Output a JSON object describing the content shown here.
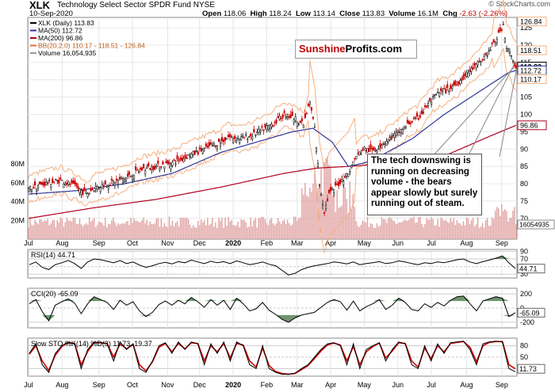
{
  "header": {
    "symbol": "XLK",
    "name": "Technology Select Sector SPDR Fund NYSE",
    "date": "10-Sep-2020",
    "open_label": "Open",
    "open": "118.06",
    "high_label": "High",
    "high": "118.24",
    "low_label": "Low",
    "low": "113.14",
    "close_label": "Close",
    "close": "113.83",
    "volume_label": "Volume",
    "volume": "16.1M",
    "chg_label": "Chg",
    "chg": "-2.63 (-2.26%)",
    "copyright": "© StockCharts.com"
  },
  "brand": {
    "part1": "Sunshine",
    "part2": "Profits.com"
  },
  "annotation": "The tech downswing is running on decreasing volume - the bears appear slowly but surely running out of steam.",
  "colors": {
    "up": "#000000",
    "down": "#cc0000",
    "ma50": "#2f3696",
    "ma200": "#b00020",
    "bb": "#f5b080",
    "volume": "#e0a0a0",
    "osc_fill": "#4a7a4a",
    "sto_k": "#000000",
    "sto_d": "#cc0000"
  },
  "chart_data": [
    {
      "type": "line",
      "title": "XLK (Daily) 113.83",
      "legend": [
        {
          "label": "XLK (Daily) 113.83",
          "color": "#000000"
        },
        {
          "label": "MA(50) 112.72",
          "color": "#2f3696"
        },
        {
          "label": "MA(200) 96.86",
          "color": "#b00020"
        },
        {
          "label": "BB(20,2.0) 110.17 - 118.51 - 126.84",
          "color": "#e07030"
        },
        {
          "label": "Volume 16,054,935",
          "color": "#999999"
        }
      ],
      "x_ticks": [
        "Jul",
        "Aug",
        "Sep",
        "Oct",
        "Nov",
        "Dec",
        "2020",
        "Feb",
        "Mar",
        "Apr",
        "May",
        "Jun",
        "Jul",
        "Aug",
        "Sep"
      ],
      "y_ticks": [
        70,
        75,
        80,
        85,
        90,
        95,
        100,
        105,
        110,
        115,
        120,
        125
      ],
      "y_right_labels": [
        "126.84",
        "118.51",
        "113.83",
        "112.72",
        "110.17",
        "96.86"
      ],
      "ylim": [
        64,
        128
      ],
      "volume_ticks": [
        "20M",
        "40M",
        "60M",
        "80M"
      ],
      "volume_last_label": "16054935",
      "series": [
        {
          "name": "XLK",
          "points": [
            [
              0,
              78.5
            ],
            [
              10,
              80
            ],
            [
              20,
              81
            ],
            [
              30,
              79
            ],
            [
              36,
              77
            ],
            [
              42,
              79
            ],
            [
              50,
              80
            ],
            [
              60,
              81.5
            ],
            [
              70,
              84
            ],
            [
              80,
              85
            ],
            [
              90,
              86
            ],
            [
              100,
              88
            ],
            [
              110,
              90
            ],
            [
              120,
              92
            ],
            [
              125,
              93.5
            ],
            [
              132,
              93
            ],
            [
              140,
              94
            ],
            [
              148,
              96
            ],
            [
              155,
              98
            ],
            [
              160,
              100
            ],
            [
              166,
              99
            ],
            [
              172,
              97
            ],
            [
              176,
              103.5
            ],
            [
              179,
              96
            ],
            [
              182,
              80
            ],
            [
              185,
              72
            ],
            [
              188,
              77
            ],
            [
              192,
              79
            ],
            [
              196,
              81
            ],
            [
              200,
              83
            ],
            [
              205,
              88
            ],
            [
              210,
              90
            ],
            [
              215,
              89.5
            ],
            [
              220,
              91
            ],
            [
              226,
              93
            ],
            [
              232,
              95
            ],
            [
              238,
              97.5
            ],
            [
              244,
              99
            ],
            [
              250,
              103
            ],
            [
              256,
              106
            ],
            [
              262,
              107
            ],
            [
              268,
              109
            ],
            [
              275,
              112
            ],
            [
              282,
              115
            ],
            [
              288,
              118
            ],
            [
              294,
              123
            ],
            [
              297,
              126
            ],
            [
              299,
              119
            ],
            [
              301,
              118
            ],
            [
              303,
              115
            ],
            [
              305,
              113.83
            ]
          ]
        },
        {
          "name": "MA(50)",
          "points": [
            [
              0,
              77
            ],
            [
              30,
              78
            ],
            [
              60,
              80
            ],
            [
              90,
              83
            ],
            [
              120,
              89
            ],
            [
              150,
              93
            ],
            [
              165,
              95
            ],
            [
              178,
              96
            ],
            [
              190,
              92
            ],
            [
              200,
              85
            ],
            [
              210,
              86
            ],
            [
              220,
              88
            ],
            [
              240,
              93
            ],
            [
              260,
              100
            ],
            [
              280,
              106
            ],
            [
              300,
              112
            ],
            [
              305,
              112.72
            ]
          ]
        },
        {
          "name": "MA(200)",
          "points": [
            [
              0,
              70
            ],
            [
              40,
              73
            ],
            [
              80,
              75.5
            ],
            [
              120,
              79
            ],
            [
              160,
              83
            ],
            [
              180,
              84.5
            ],
            [
              200,
              85
            ],
            [
              230,
              86
            ],
            [
              260,
              88
            ],
            [
              290,
              94
            ],
            [
              305,
              96.86
            ]
          ]
        }
      ]
    },
    {
      "type": "line",
      "title": "RSI(14) 44.71",
      "y_ticks": [
        30,
        50,
        70,
        90
      ],
      "last_value_label": "44.71",
      "ylim": [
        20,
        95
      ],
      "values": [
        55,
        62,
        48,
        42,
        55,
        60,
        66,
        58,
        45,
        62,
        70,
        68,
        64,
        60,
        66,
        58,
        62,
        54,
        48,
        52,
        58,
        61,
        57,
        63,
        60,
        67,
        62,
        58,
        64,
        60,
        63,
        58,
        65,
        60,
        55,
        58,
        62,
        56,
        52,
        40,
        28,
        32,
        42,
        48,
        52,
        55,
        58,
        62,
        60,
        57,
        62,
        55,
        58,
        60,
        63,
        58,
        60,
        65,
        62,
        58,
        55,
        60,
        58,
        62,
        60,
        64,
        68,
        70,
        62,
        58,
        63,
        67,
        72,
        78,
        60,
        44.71
      ]
    },
    {
      "type": "line",
      "title": "CCI(20) -65.09",
      "y_ticks": [
        200,
        0,
        -200
      ],
      "last_value_label": "-65.09",
      "ylim": [
        -280,
        280
      ],
      "values": [
        60,
        120,
        -50,
        -180,
        40,
        90,
        130,
        70,
        -80,
        60,
        160,
        120,
        80,
        -20,
        110,
        40,
        90,
        -40,
        -120,
        -60,
        50,
        100,
        40,
        110,
        60,
        150,
        90,
        10,
        120,
        40,
        110,
        -20,
        140,
        60,
        -40,
        -10,
        80,
        -30,
        -90,
        -160,
        -200,
        -140,
        -100,
        -80,
        -60,
        10,
        80,
        120,
        90,
        -30,
        100,
        -40,
        20,
        60,
        120,
        -20,
        40,
        140,
        80,
        -20,
        -40,
        60,
        10,
        80,
        30,
        110,
        160,
        170,
        60,
        -40,
        100,
        130,
        160,
        140,
        -120,
        -65.09
      ]
    },
    {
      "type": "line",
      "title": "Slow STO %K(14) %D(3) 11.73, 19.37",
      "y_ticks": [
        80,
        50,
        20
      ],
      "last_value_label": "11.73",
      "ylim": [
        0,
        100
      ],
      "series": [
        {
          "name": "%K(14) 11.73",
          "values": [
            60,
            85,
            30,
            10,
            60,
            80,
            90,
            85,
            20,
            70,
            90,
            88,
            85,
            40,
            90,
            70,
            85,
            20,
            10,
            40,
            80,
            88,
            60,
            90,
            70,
            90,
            85,
            30,
            85,
            60,
            90,
            40,
            90,
            80,
            30,
            20,
            80,
            20,
            10,
            5,
            5,
            8,
            20,
            30,
            50,
            70,
            85,
            88,
            80,
            30,
            85,
            20,
            70,
            80,
            88,
            40,
            70,
            90,
            85,
            30,
            20,
            80,
            40,
            85,
            60,
            88,
            90,
            92,
            70,
            30,
            85,
            90,
            92,
            90,
            20,
            11.73
          ]
        },
        {
          "name": "%D(3) 19.37",
          "values": [
            58,
            80,
            40,
            15,
            55,
            78,
            88,
            86,
            30,
            65,
            88,
            88,
            86,
            50,
            85,
            72,
            84,
            30,
            14,
            38,
            76,
            86,
            64,
            86,
            72,
            88,
            86,
            40,
            80,
            64,
            86,
            48,
            86,
            82,
            40,
            24,
            74,
            28,
            12,
            7,
            5,
            7,
            17,
            28,
            46,
            66,
            82,
            87,
            82,
            40,
            78,
            30,
            64,
            78,
            87,
            48,
            66,
            88,
            86,
            40,
            24,
            74,
            46,
            80,
            64,
            86,
            89,
            91,
            76,
            38,
            80,
            89,
            91,
            91,
            30,
            19.37
          ]
        }
      ]
    }
  ]
}
